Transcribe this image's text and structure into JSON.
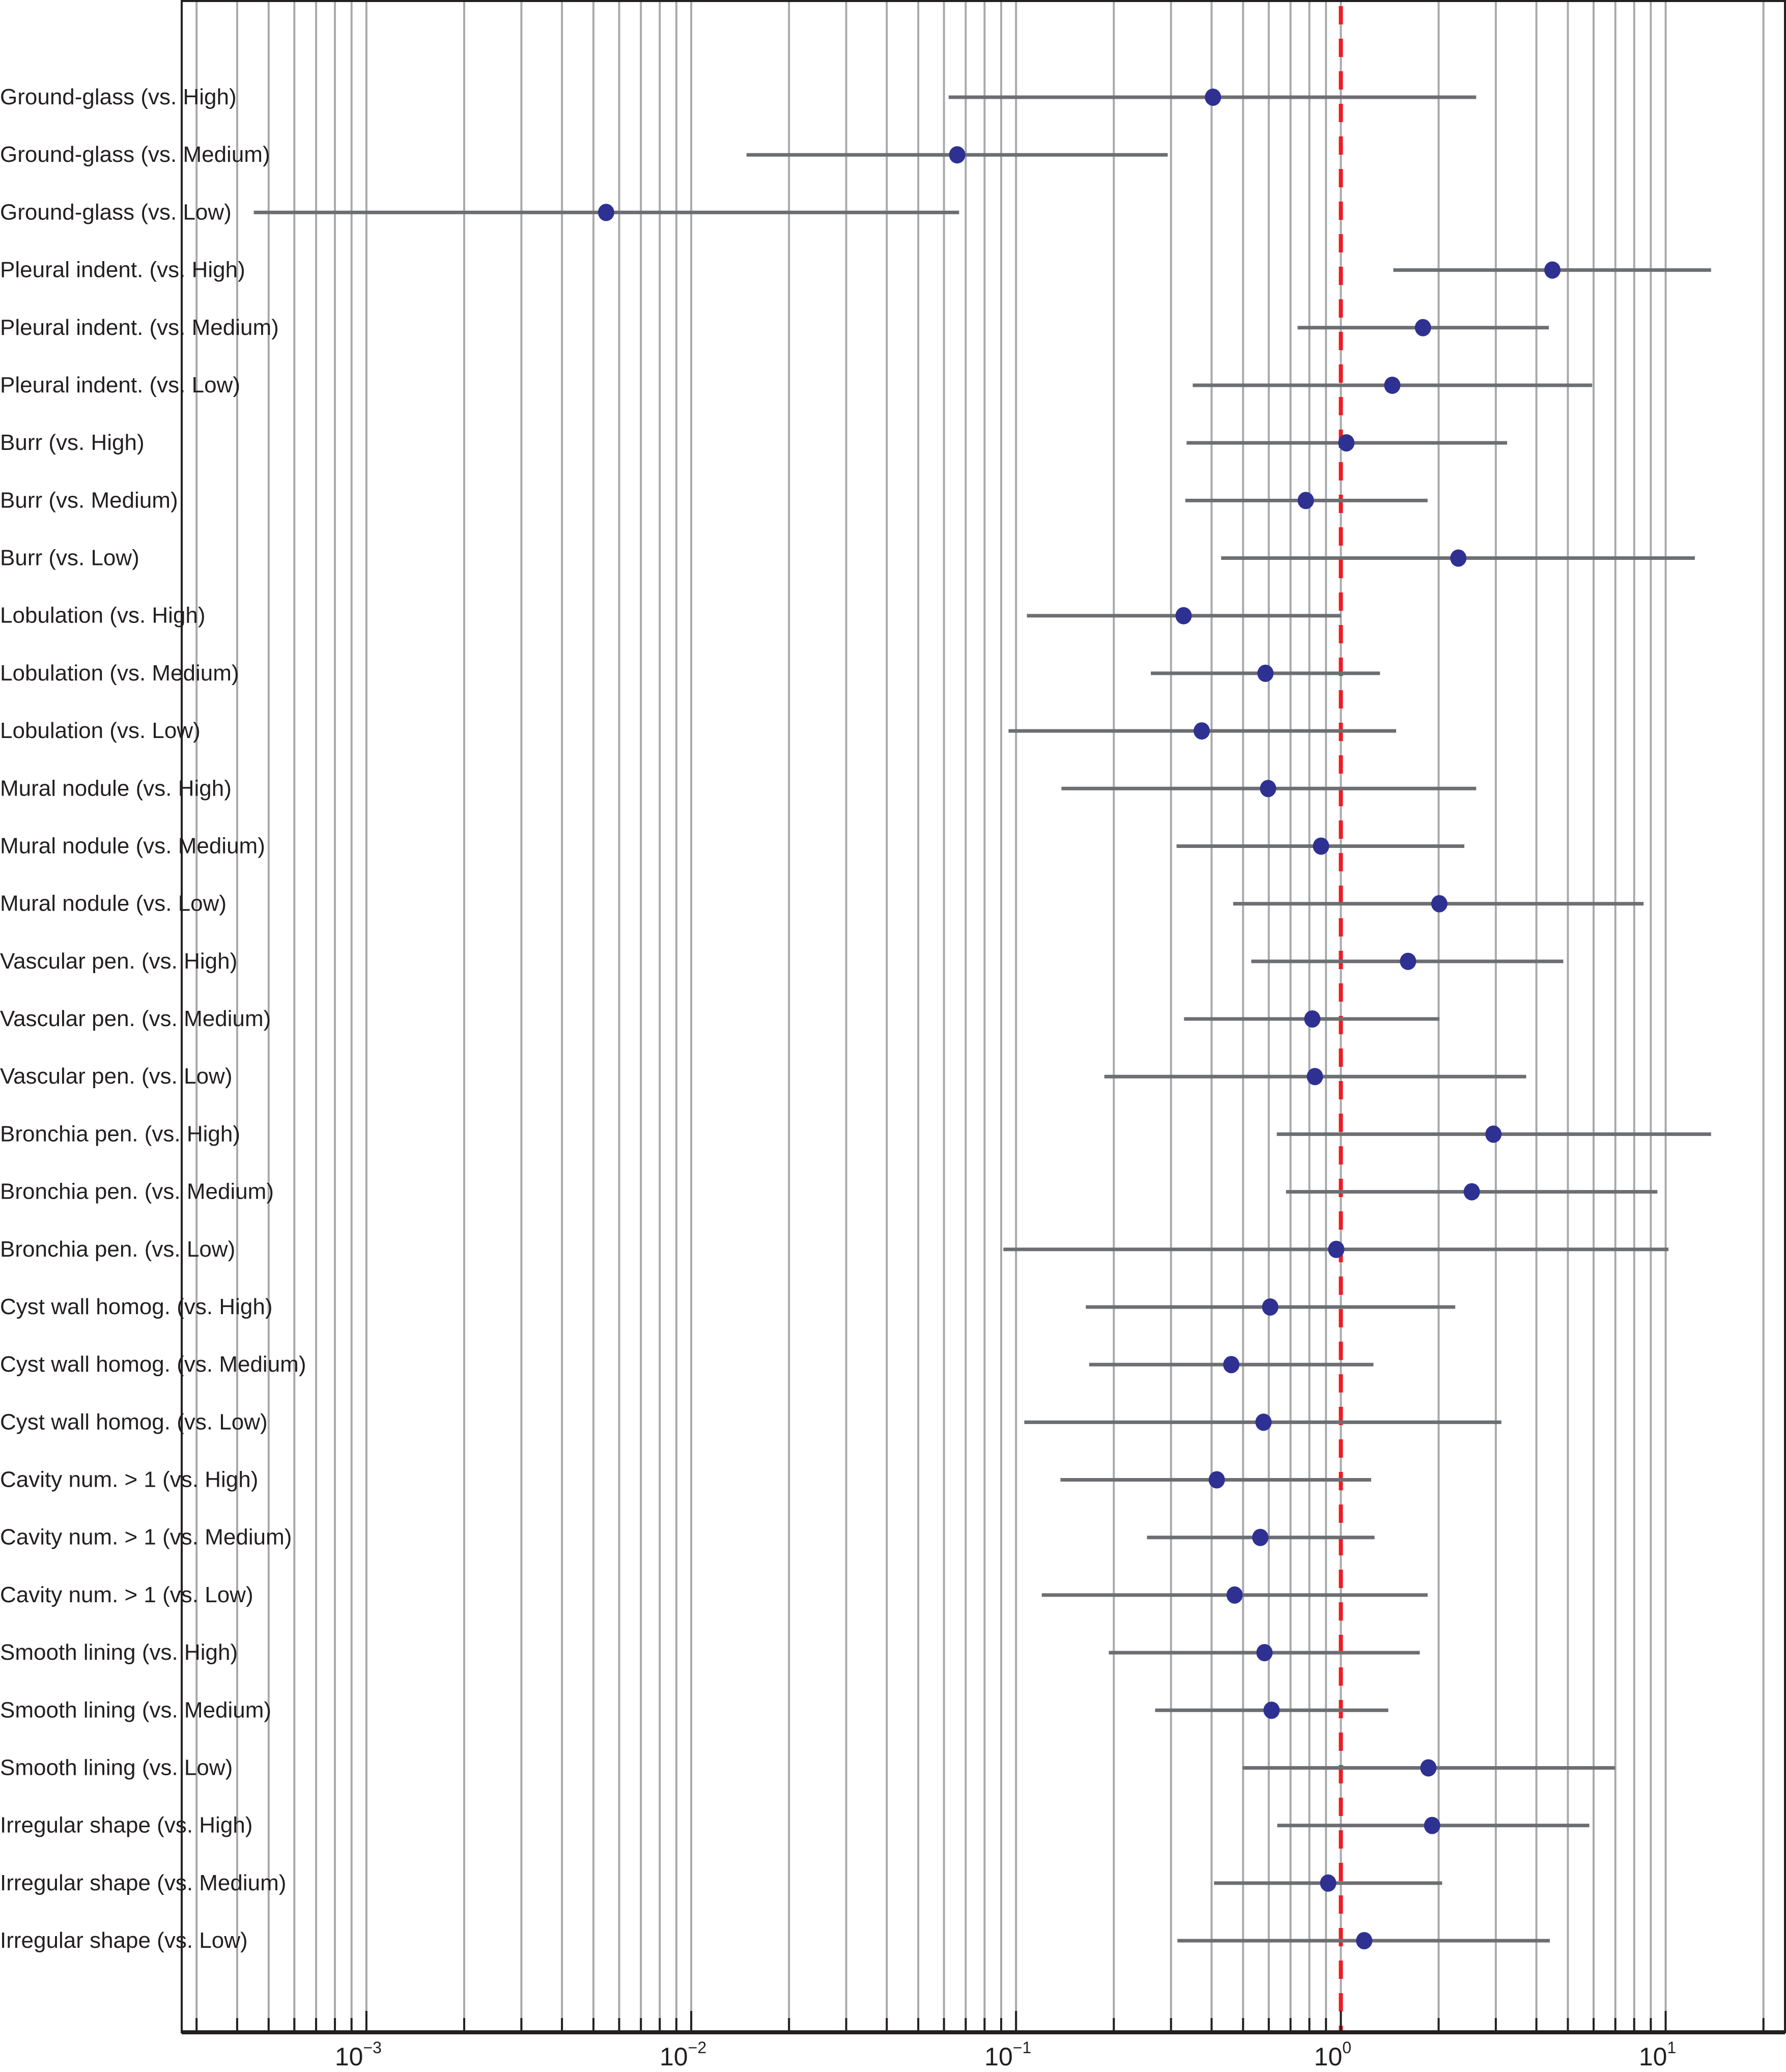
{
  "chart_data": {
    "type": "scatter",
    "subtype": "forest-plot",
    "title": "",
    "xlabel": "",
    "ylabel": "",
    "xscale": "log",
    "xlim": [
      0.00027,
      23.3
    ],
    "major_ticks": [
      0.001,
      0.01,
      0.1,
      1,
      10
    ],
    "tick_labels": [
      {
        "base": "10",
        "exp": "−3"
      },
      {
        "base": "10",
        "exp": "−2"
      },
      {
        "base": "10",
        "exp": "−1"
      },
      {
        "base": "10",
        "exp": "0"
      },
      {
        "base": "10",
        "exp": "1"
      }
    ],
    "grid": "vertical major and minor (log)",
    "reference_line": {
      "x": 1,
      "style": "dashed",
      "color": "#ed1c24"
    },
    "colors": {
      "point": "#2e3192",
      "ci_line": "#6d6e71",
      "grid": "#a7a9ac",
      "axis": "#231f20",
      "reference": "#ed1c24"
    },
    "rows": [
      {
        "label": "Ground-glass (vs. High)",
        "estimate": 0.404,
        "lower": 0.062,
        "upper": 2.61
      },
      {
        "label": "Ground-glass (vs. Medium)",
        "estimate": 0.0659,
        "lower": 0.0148,
        "upper": 0.293
      },
      {
        "label": "Ground-glass (vs. Low)",
        "estimate": 0.00547,
        "lower": 0.00045,
        "upper": 0.0668
      },
      {
        "label": "Pleural indent. (vs. High)",
        "estimate": 4.48,
        "lower": 1.45,
        "upper": 13.8
      },
      {
        "label": "Pleural indent. (vs. Medium)",
        "estimate": 1.79,
        "lower": 0.736,
        "upper": 4.37
      },
      {
        "label": "Pleural indent. (vs. Low)",
        "estimate": 1.44,
        "lower": 0.35,
        "upper": 5.94
      },
      {
        "label": "Burr (vs. High)",
        "estimate": 1.04,
        "lower": 0.335,
        "upper": 3.25
      },
      {
        "label": "Burr (vs. Medium)",
        "estimate": 0.78,
        "lower": 0.332,
        "upper": 1.85
      },
      {
        "label": "Burr (vs. Low)",
        "estimate": 2.3,
        "lower": 0.428,
        "upper": 12.3
      },
      {
        "label": "Lobulation (vs. High)",
        "estimate": 0.328,
        "lower": 0.108,
        "upper": 1.0
      },
      {
        "label": "Lobulation (vs. Medium)",
        "estimate": 0.586,
        "lower": 0.26,
        "upper": 1.32
      },
      {
        "label": "Lobulation (vs. Low)",
        "estimate": 0.373,
        "lower": 0.0948,
        "upper": 1.48
      },
      {
        "label": "Mural nodule (vs. High)",
        "estimate": 0.597,
        "lower": 0.138,
        "upper": 2.61
      },
      {
        "label": "Mural nodule (vs. Medium)",
        "estimate": 0.869,
        "lower": 0.312,
        "upper": 2.4
      },
      {
        "label": "Mural nodule (vs. Low)",
        "estimate": 2.01,
        "lower": 0.466,
        "upper": 8.55
      },
      {
        "label": "Vascular pen. (vs. High)",
        "estimate": 1.61,
        "lower": 0.53,
        "upper": 4.84
      },
      {
        "label": "Vascular pen. (vs. Medium)",
        "estimate": 0.817,
        "lower": 0.329,
        "upper": 2.01
      },
      {
        "label": "Vascular pen. (vs. Low)",
        "estimate": 0.832,
        "lower": 0.187,
        "upper": 3.72
      },
      {
        "label": "Bronchia pen. (vs. High)",
        "estimate": 2.95,
        "lower": 0.635,
        "upper": 13.8
      },
      {
        "label": "Bronchia pen. (vs. Medium)",
        "estimate": 2.53,
        "lower": 0.678,
        "upper": 9.43
      },
      {
        "label": "Bronchia pen. (vs. Low)",
        "estimate": 0.968,
        "lower": 0.0914,
        "upper": 10.2
      },
      {
        "label": "Cyst wall homog. (vs. High)",
        "estimate": 0.606,
        "lower": 0.164,
        "upper": 2.25
      },
      {
        "label": "Cyst wall homog. (vs. Medium)",
        "estimate": 0.46,
        "lower": 0.168,
        "upper": 1.26
      },
      {
        "label": "Cyst wall homog. (vs. Low)",
        "estimate": 0.578,
        "lower": 0.106,
        "upper": 3.12
      },
      {
        "label": "Cavity num.  > 1 (vs. High)",
        "estimate": 0.415,
        "lower": 0.137,
        "upper": 1.24
      },
      {
        "label": "Cavity num. > 1 (vs. Medium)",
        "estimate": 0.565,
        "lower": 0.253,
        "upper": 1.27
      },
      {
        "label": "Cavity num. > 1 (vs. Low)",
        "estimate": 0.471,
        "lower": 0.12,
        "upper": 1.85
      },
      {
        "label": "Smooth lining (vs. High)",
        "estimate": 0.582,
        "lower": 0.193,
        "upper": 1.75
      },
      {
        "label": "Smooth lining (vs. Medium)",
        "estimate": 0.612,
        "lower": 0.268,
        "upper": 1.4
      },
      {
        "label": "Smooth lining (vs. Low)",
        "estimate": 1.86,
        "lower": 0.499,
        "upper": 6.99
      },
      {
        "label": "Irregular shape (vs. High)",
        "estimate": 1.91,
        "lower": 0.637,
        "upper": 5.82
      },
      {
        "label": "Irregular shape (vs. Medium)",
        "estimate": 0.914,
        "lower": 0.407,
        "upper": 2.05
      },
      {
        "label": "Irregular shape (vs. Low)",
        "estimate": 1.18,
        "lower": 0.314,
        "upper": 4.4
      }
    ]
  }
}
